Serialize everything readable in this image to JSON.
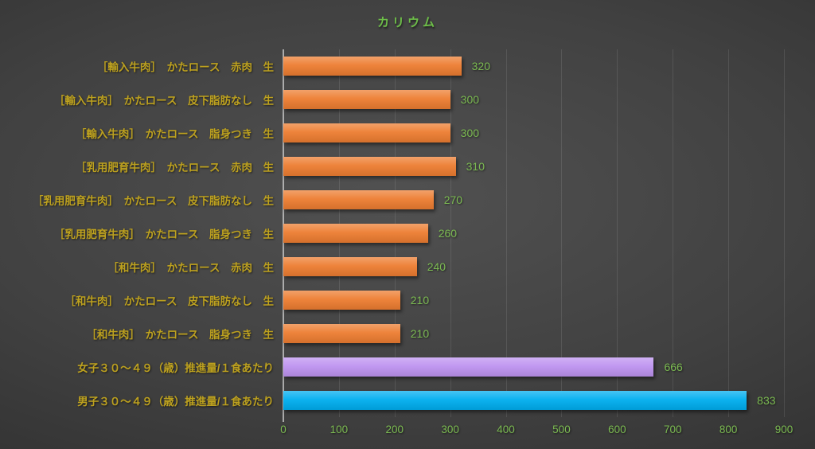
{
  "accent_colors": {
    "title_green": "#6dbe48",
    "label_yellow": "#bda11f",
    "value_green": "#7cbb52",
    "bar_orange": "#ED7D31",
    "bar_purple": "#BE93F0",
    "bar_blue": "#00AEEF"
  },
  "chart_data": {
    "type": "bar",
    "orientation": "horizontal",
    "title": "カリウム",
    "categories": [
      "［輸入牛肉］　かたロース　赤肉　生",
      "［輸入牛肉］　かたロース　皮下脂肪なし　生",
      "［輸入牛肉］　かたロース　脂身つき　生",
      "［乳用肥育牛肉］　かたロース　赤肉　生",
      "［乳用肥育牛肉］　かたロース　皮下脂肪なし　生",
      "［乳用肥育牛肉］　かたロース　脂身つき　生",
      "［和牛肉］　かたロース　赤肉　生",
      "［和牛肉］　かたロース　皮下脂肪なし　生",
      "［和牛肉］　かたロース　脂身つき　生",
      "女子３０～４９（歳）推進量/１食あたり",
      "男子３０～４９（歳）推進量/１食あたり"
    ],
    "values": [
      320,
      300,
      300,
      310,
      270,
      260,
      240,
      210,
      210,
      666,
      833
    ],
    "bar_colors": [
      "#ED7D31",
      "#ED7D31",
      "#ED7D31",
      "#ED7D31",
      "#ED7D31",
      "#ED7D31",
      "#ED7D31",
      "#ED7D31",
      "#ED7D31",
      "#BE93F0",
      "#00AEEF"
    ],
    "value_labels_shown": true,
    "xlabel": "",
    "ylabel": "",
    "xlim": [
      0,
      900
    ],
    "xticks": [
      0,
      100,
      200,
      300,
      400,
      500,
      600,
      700,
      800,
      900
    ],
    "grid": "vertical",
    "legend": "none"
  }
}
